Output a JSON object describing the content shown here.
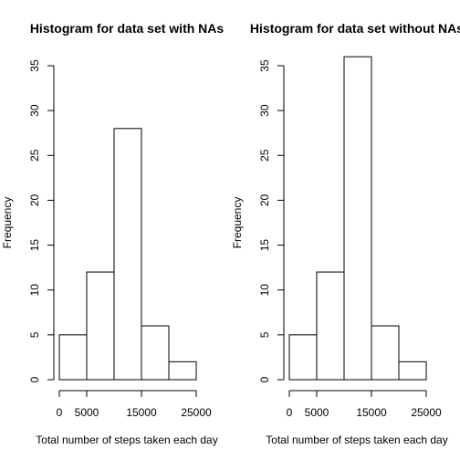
{
  "chart_data": [
    {
      "type": "bar",
      "title": "Histogram for data set with NAs",
      "xlabel": "Total number of steps taken each day",
      "ylabel": "Frequency",
      "bin_edges": [
        0,
        5000,
        10000,
        15000,
        20000,
        25000
      ],
      "values": [
        5,
        12,
        28,
        6,
        2
      ],
      "xticks": [
        0,
        5000,
        15000,
        25000
      ],
      "xtick_labels": [
        "0",
        "5000",
        "15000",
        "25000"
      ],
      "yticks": [
        0,
        5,
        10,
        15,
        20,
        25,
        30,
        35
      ],
      "ytick_labels": [
        "0",
        "5",
        "10",
        "15",
        "20",
        "25",
        "30",
        "35"
      ],
      "xlim": [
        0,
        25000
      ],
      "ylim": [
        0,
        35
      ],
      "grid": false,
      "bar_fill": "#ffffff",
      "bar_stroke": "#000000"
    },
    {
      "type": "bar",
      "title": "Histogram for data set without NAs",
      "xlabel": "Total number of steps taken each day",
      "ylabel": "Frequency",
      "bin_edges": [
        0,
        5000,
        10000,
        15000,
        20000,
        25000
      ],
      "values": [
        5,
        12,
        36,
        6,
        2
      ],
      "xticks": [
        0,
        5000,
        15000,
        25000
      ],
      "xtick_labels": [
        "0",
        "5000",
        "15000",
        "25000"
      ],
      "yticks": [
        0,
        5,
        10,
        15,
        20,
        25,
        30,
        35
      ],
      "ytick_labels": [
        "0",
        "5",
        "10",
        "15",
        "20",
        "25",
        "30",
        "35"
      ],
      "xlim": [
        0,
        25000
      ],
      "ylim": [
        0,
        35
      ],
      "grid": false,
      "bar_fill": "#ffffff",
      "bar_stroke": "#000000"
    }
  ]
}
